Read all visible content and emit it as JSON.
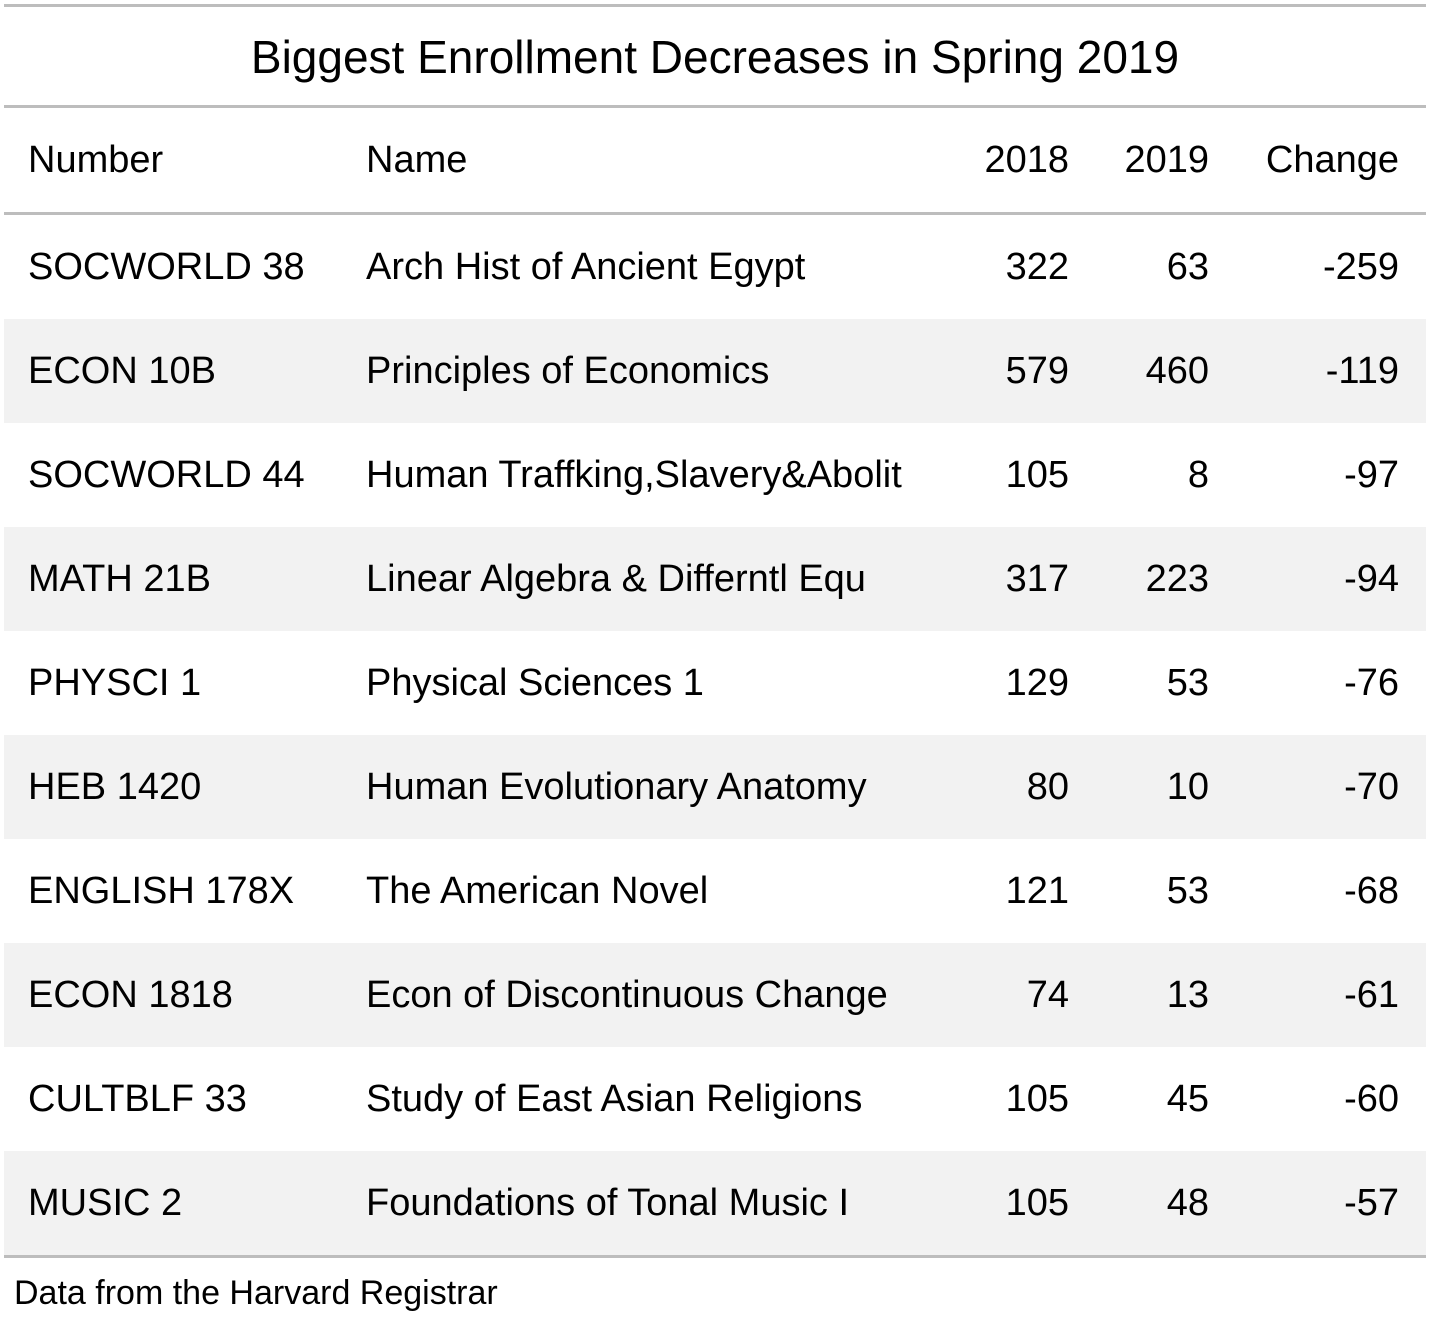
{
  "chart_data": {
    "type": "table",
    "title": "Biggest Enrollment Decreases in Spring 2019",
    "columns": [
      "Number",
      "Name",
      "2018",
      "2019",
      "Change"
    ],
    "rows": [
      [
        "SOCWORLD 38",
        "Arch Hist of Ancient Egypt",
        "322",
        "63",
        "-259"
      ],
      [
        "ECON 10B",
        "Principles of Economics",
        "579",
        "460",
        "-119"
      ],
      [
        "SOCWORLD 44",
        "Human Traffking,Slavery&Abolit",
        "105",
        "8",
        "-97"
      ],
      [
        "MATH 21B",
        "Linear Algebra & Differntl Equ",
        "317",
        "223",
        "-94"
      ],
      [
        "PHYSCI 1",
        "Physical Sciences 1",
        "129",
        "53",
        "-76"
      ],
      [
        "HEB 1420",
        "Human Evolutionary Anatomy",
        "80",
        "10",
        "-70"
      ],
      [
        "ENGLISH 178X",
        "The American Novel",
        "121",
        "53",
        "-68"
      ],
      [
        "ECON 1818",
        "Econ of Discontinuous Change",
        "74",
        "13",
        "-61"
      ],
      [
        "CULTBLF 33",
        "Study of East Asian Religions",
        "105",
        "45",
        "-60"
      ],
      [
        "MUSIC 2",
        "Foundations of Tonal Music I",
        "105",
        "48",
        "-57"
      ]
    ],
    "footnote": "Data from the Harvard Registrar"
  },
  "colors": {
    "rule": "#bdbdbd",
    "stripe": "#f2f2f2",
    "text": "#000000"
  }
}
